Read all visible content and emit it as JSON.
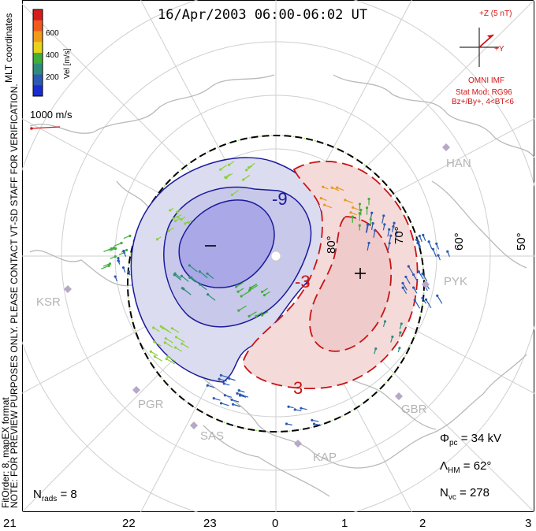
{
  "title": "16/Apr/2003 06:00-06:02 UT",
  "colorbar": {
    "ticks": [
      "600",
      "400",
      "200"
    ],
    "label": "Vel [m/s]",
    "colors": [
      "#d61c1c",
      "#f05a1e",
      "#f29a1c",
      "#e8d21c",
      "#3fae3a",
      "#2e8c7a",
      "#2a5ab4",
      "#1a2ccf"
    ]
  },
  "coords_label": "MLT coordinates",
  "ref_vector_label": "1000 m/s",
  "imf": {
    "scale_label": "+Z (5 nT)",
    "y_label": "+Y",
    "source": "OMNI IMF",
    "model": "Stat Mod: RG96",
    "condition": "Bz+/By+, 4<BT<6"
  },
  "note_lines": [
    "NOTE: FOR PREVIEW PURPOSES ONLY. PLEASE CONTACT VT-SD STAFF FOR VERIFICATION.",
    "FitOrder: 8, mapEX format"
  ],
  "stats": {
    "nrads": {
      "sym": "N",
      "sub": "rads",
      "value": "= 8"
    },
    "phi_pc": {
      "sym": "Φ",
      "sub": "pc",
      "value": "= 34 kV"
    },
    "lambda_hm": {
      "sym": "Λ",
      "sub": "HM",
      "value": "= 62°"
    },
    "nvc": {
      "sym": "N",
      "sub": "vc",
      "value": "= 278"
    }
  },
  "contour_labels": [
    "-9",
    "-3",
    "3"
  ],
  "lat_labels": [
    "80°",
    "70°",
    "60°",
    "50°"
  ],
  "stations": [
    "HAN",
    "PYK",
    "KSR",
    "PGR",
    "SAS",
    "KAP",
    "GBR"
  ],
  "mlt_labels": [
    "21",
    "22",
    "23",
    "0",
    "1",
    "2",
    "3"
  ]
}
